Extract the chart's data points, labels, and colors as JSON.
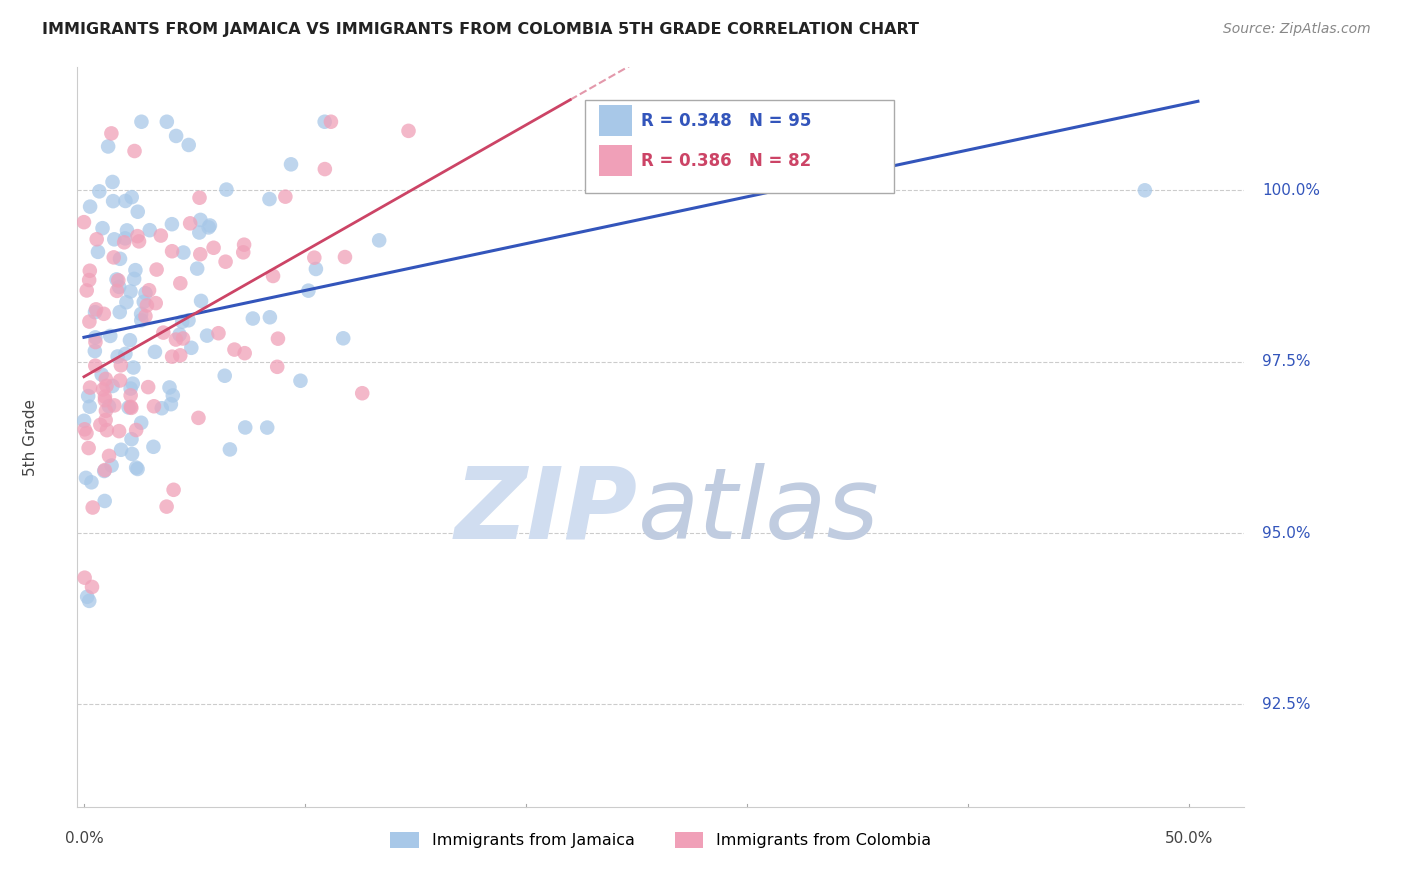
{
  "title": "IMMIGRANTS FROM JAMAICA VS IMMIGRANTS FROM COLOMBIA 5TH GRADE CORRELATION CHART",
  "source": "Source: ZipAtlas.com",
  "ylabel": "5th Grade",
  "jamaica_R": 0.348,
  "jamaica_N": 95,
  "colombia_R": 0.386,
  "colombia_N": 82,
  "jamaica_color": "#a8c8e8",
  "colombia_color": "#f0a0b8",
  "jamaica_line_color": "#3355bb",
  "colombia_line_color": "#cc4466",
  "watermark_zip": "ZIP",
  "watermark_atlas": "atlas",
  "watermark_color_zip": "#d0ddf0",
  "watermark_color_atlas": "#c0cce0",
  "background_color": "#ffffff",
  "grid_color": "#cccccc",
  "ymin": 91.0,
  "ymax": 101.8,
  "xmin": -0.003,
  "xmax": 0.525,
  "yticks": [
    100.0,
    97.5,
    95.0,
    92.5
  ],
  "xtick_labels": [
    "0.0%",
    "50.0%"
  ],
  "xtick_pos": [
    0.0,
    0.5
  ]
}
